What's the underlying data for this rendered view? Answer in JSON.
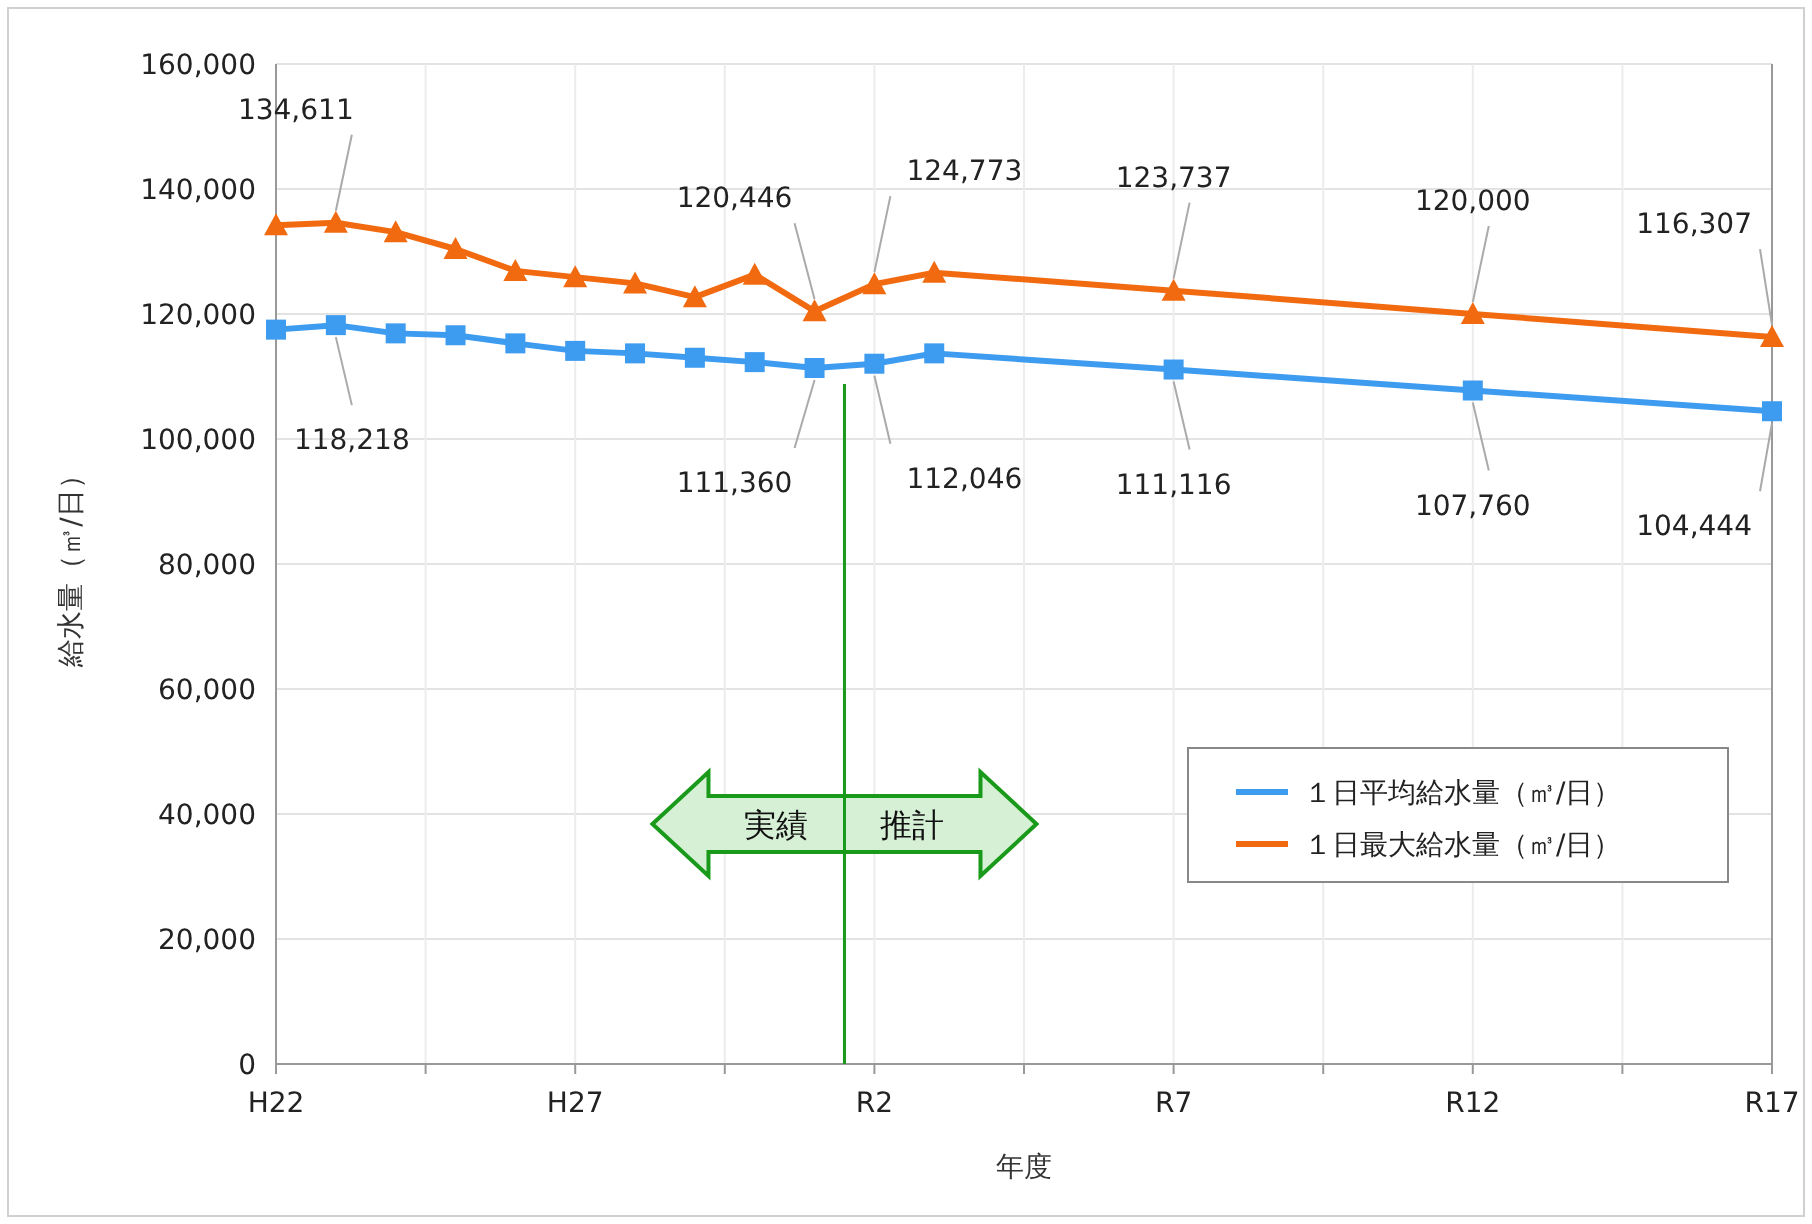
{
  "chart_data": {
    "type": "line",
    "xlabel": "年度",
    "ylabel": "給水量（㎥/日）",
    "categories": [
      "H22",
      null,
      null,
      null,
      null,
      "H27",
      null,
      null,
      null,
      null,
      "R2",
      null,
      null,
      null,
      null,
      "R7",
      null,
      null,
      null,
      null,
      "R12",
      null,
      null,
      null,
      null,
      "R17"
    ],
    "ylim": [
      0,
      160000
    ],
    "yticks": [
      {
        "value": 0,
        "label": "0"
      },
      {
        "value": 20000,
        "label": "20,000"
      },
      {
        "value": 40000,
        "label": "40,000"
      },
      {
        "value": 60000,
        "label": "60,000"
      },
      {
        "value": 80000,
        "label": "80,000"
      },
      {
        "value": 100000,
        "label": "100,000"
      },
      {
        "value": 120000,
        "label": "120,000"
      },
      {
        "value": 140000,
        "label": "140,000"
      },
      {
        "value": 160000,
        "label": "160,000"
      }
    ],
    "grid": true,
    "legend": "bottom right",
    "line_style": "solid",
    "series": [
      {
        "name": "１日平均給水量（㎥/日）",
        "color": "#3d9bf0",
        "marker": "square",
        "values": [
          117500,
          118218,
          116900,
          116600,
          115300,
          114100,
          113700,
          113000,
          112300,
          111360,
          112046,
          113700,
          null,
          null,
          null,
          111116,
          null,
          null,
          null,
          null,
          107760,
          null,
          null,
          null,
          null,
          104444
        ],
        "value_labels": [
          null,
          "118,218",
          null,
          null,
          null,
          null,
          null,
          null,
          null,
          "111,360",
          "112,046",
          null,
          null,
          null,
          null,
          "111,116",
          null,
          null,
          null,
          null,
          "107,760",
          null,
          null,
          null,
          null,
          "104,444"
        ]
      },
      {
        "name": "１日最大給水量（㎥/日）",
        "color": "#f26a10",
        "marker": "triangle",
        "values": [
          134200,
          134611,
          133100,
          130400,
          126900,
          125900,
          124900,
          122700,
          126300,
          120446,
          124773,
          126600,
          null,
          null,
          null,
          123737,
          null,
          null,
          null,
          null,
          120000,
          null,
          null,
          null,
          null,
          116307
        ],
        "value_labels": [
          null,
          "134,611",
          null,
          null,
          null,
          null,
          null,
          null,
          null,
          "120,446",
          "124,773",
          null,
          null,
          null,
          null,
          "123,737",
          null,
          null,
          null,
          null,
          "120,000",
          null,
          null,
          null,
          null,
          "116,307"
        ]
      }
    ],
    "annotations": [
      "実績",
      "推計"
    ]
  }
}
